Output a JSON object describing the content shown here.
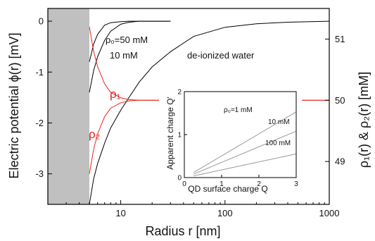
{
  "chart_data": [
    {
      "type": "line",
      "xscale": "log",
      "xlim": [
        2,
        1000
      ],
      "ylim": [
        -3.6,
        0.25
      ],
      "ylim_right": [
        48.3,
        51.5
      ],
      "xlabel": "Radius r [nm]",
      "ylabel": "Electric potential ϕ(r) [mV]",
      "ylabel_right": "ρ₁(r) & ρ₂(r) [mM]",
      "x_ticks": [
        10,
        100,
        1000
      ],
      "x_tick_labels": [
        "10",
        "100",
        "1000"
      ],
      "y_ticks": [
        0,
        -1,
        -2,
        -3
      ],
      "y_tick_labels": [
        "0",
        "-1",
        "-2",
        "-3"
      ],
      "y_ticks_right": [
        51,
        50,
        49
      ],
      "y_tick_labels_right": [
        "51",
        "50",
        "49"
      ],
      "shaded_region": {
        "x_from": 2,
        "x_to": 5,
        "color": "#c0c0c0"
      },
      "series": [
        {
          "name": "ρ₀=50 mM",
          "axis": "left",
          "color": "#000000",
          "x": [
            5,
            5.5,
            6,
            7,
            8,
            10,
            12,
            15,
            20,
            30
          ],
          "y": [
            -0.8,
            -0.45,
            -0.26,
            -0.08,
            -0.03,
            -0.01,
            0,
            0,
            0,
            0
          ]
        },
        {
          "name": "10 mM",
          "axis": "left",
          "color": "#000000",
          "x": [
            5,
            5.5,
            6,
            7,
            8,
            10,
            12,
            15,
            20,
            30
          ],
          "y": [
            -1.4,
            -0.97,
            -0.7,
            -0.38,
            -0.2,
            -0.06,
            -0.02,
            0,
            0,
            0
          ]
        },
        {
          "name": "de-ionized water",
          "axis": "left",
          "color": "#000000",
          "x": [
            5,
            5.5,
            6,
            7,
            8,
            10,
            12,
            15,
            20,
            30,
            50,
            100,
            200,
            400,
            1000
          ],
          "y": [
            -3.6,
            -3.1,
            -2.8,
            -2.4,
            -2.1,
            -1.75,
            -1.5,
            -1.2,
            -0.9,
            -0.6,
            -0.3,
            -0.12,
            -0.05,
            -0.02,
            0
          ]
        },
        {
          "name": "ρ₁",
          "axis": "right",
          "color": "#e8241c",
          "x": [
            5,
            5.5,
            6,
            7,
            8,
            10,
            12,
            15,
            20,
            30,
            100,
            1000
          ],
          "y": [
            51.2,
            50.8,
            50.55,
            50.27,
            50.13,
            50.04,
            50.01,
            50,
            50,
            50,
            50,
            50
          ]
        },
        {
          "name": "ρ₂",
          "axis": "right",
          "color": "#e8241c",
          "x": [
            5,
            5.5,
            6,
            7,
            8,
            10,
            12,
            15,
            20,
            30,
            100,
            1000
          ],
          "y": [
            48.8,
            49.2,
            49.45,
            49.73,
            49.87,
            49.96,
            49.99,
            50,
            50,
            50,
            50,
            50
          ]
        }
      ],
      "annotations": [
        "ρ₀=50 mM",
        "10 mM",
        "de-ionized water",
        "ρ₁",
        "ρ₂"
      ]
    },
    {
      "type": "line",
      "xlabel": "QD surface charge Q",
      "ylabel": "Apparent charge Q'",
      "xlim": [
        0,
        3
      ],
      "ylim": [
        0,
        2
      ],
      "x_ticks": [
        0,
        1,
        2,
        3
      ],
      "x_tick_labels": [
        "0",
        "1",
        "2",
        "3"
      ],
      "y_ticks": [
        0,
        1,
        2
      ],
      "y_tick_labels": [
        "0",
        "1",
        "2"
      ],
      "series": [
        {
          "name": "ρ₀=1 mM",
          "color": "#999999",
          "x": [
            0.25,
            3
          ],
          "y": [
            0.12,
            1.53
          ]
        },
        {
          "name": "10 mM",
          "color": "#999999",
          "x": [
            0.25,
            3
          ],
          "y": [
            0.08,
            1.08
          ]
        },
        {
          "name": "100 mM",
          "color": "#999999",
          "x": [
            0.25,
            3
          ],
          "y": [
            0.04,
            0.55
          ]
        }
      ],
      "annotations": [
        "ρ₀=1 mM",
        "10 mM",
        "100 mM"
      ]
    }
  ]
}
